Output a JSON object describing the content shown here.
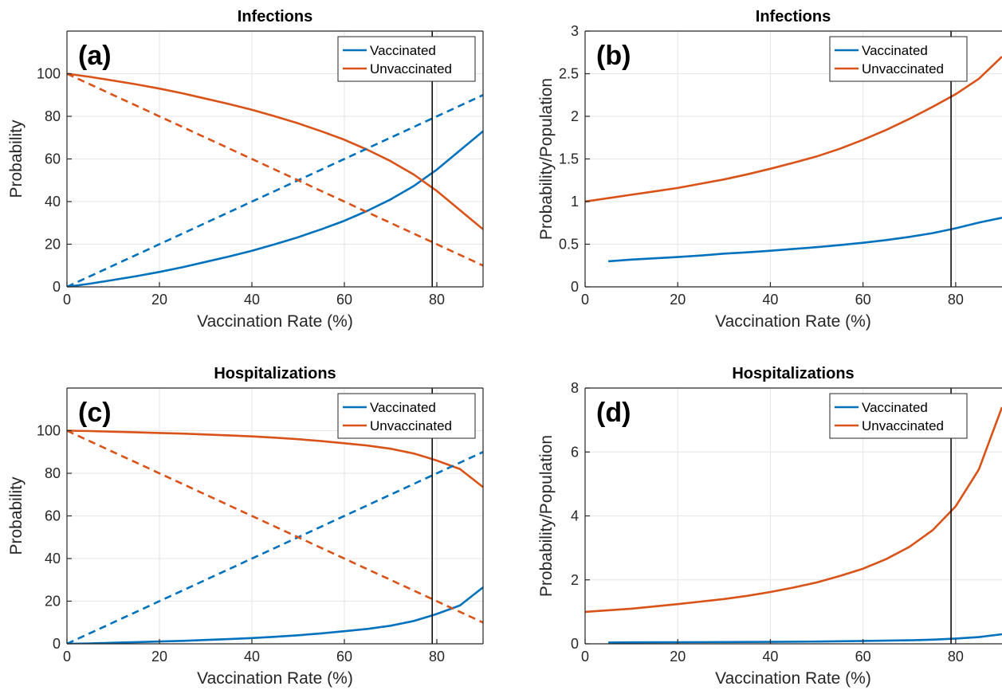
{
  "colors": {
    "vaccinated": "#0072BD",
    "unvaccinated": "#D95319",
    "marker_line": "#000000",
    "grid": "#e6e6e6",
    "axis": "#262626"
  },
  "chart_data": [
    {
      "type": "line",
      "title": "Infections",
      "panel_label": "(a)",
      "xlabel": "Vaccination Rate (%)",
      "ylabel": "Probability",
      "xlim": [
        0,
        90
      ],
      "ylim": [
        0,
        120
      ],
      "xticks": [
        0,
        20,
        40,
        60,
        80
      ],
      "yticks": [
        0,
        20,
        40,
        60,
        80,
        100
      ],
      "grid": true,
      "legend_position": "top-right",
      "vline_x": 79,
      "series": [
        {
          "name": "Vaccinated",
          "color_key": "vaccinated",
          "style": "solid",
          "in_legend": true,
          "x": [
            0,
            5,
            10,
            15,
            20,
            25,
            30,
            35,
            40,
            45,
            50,
            55,
            60,
            65,
            70,
            75,
            79,
            80,
            85,
            90
          ],
          "y": [
            0,
            1.5,
            3.2,
            5,
            7,
            9.2,
            11.7,
            14.2,
            16.9,
            20,
            23.3,
            27,
            31,
            35.7,
            41,
            47.3,
            53.5,
            55,
            64,
            73
          ]
        },
        {
          "name": "Unvaccinated",
          "color_key": "unvaccinated",
          "style": "solid",
          "in_legend": true,
          "x": [
            0,
            5,
            10,
            15,
            20,
            25,
            30,
            35,
            40,
            45,
            50,
            55,
            60,
            65,
            70,
            75,
            79,
            80,
            85,
            90
          ],
          "y": [
            100,
            98.5,
            96.8,
            95,
            93,
            90.8,
            88.3,
            85.8,
            83.1,
            80,
            76.7,
            73,
            69,
            64.3,
            59,
            52.7,
            46.5,
            45,
            36,
            27
          ]
        },
        {
          "name": "",
          "color_key": "vaccinated",
          "style": "dashed",
          "in_legend": false,
          "x": [
            0,
            90
          ],
          "y": [
            0,
            90
          ]
        },
        {
          "name": "",
          "color_key": "unvaccinated",
          "style": "dashed",
          "in_legend": false,
          "x": [
            0,
            90
          ],
          "y": [
            100,
            10
          ]
        }
      ]
    },
    {
      "type": "line",
      "title": "Infections",
      "panel_label": "(b)",
      "xlabel": "Vaccination Rate (%)",
      "ylabel": "Probability/Population",
      "xlim": [
        0,
        90
      ],
      "ylim": [
        0,
        3
      ],
      "xticks": [
        0,
        20,
        40,
        60,
        80
      ],
      "yticks": [
        0,
        0.5,
        1,
        1.5,
        2,
        2.5,
        3
      ],
      "grid": true,
      "legend_position": "top-right",
      "vline_x": 79,
      "series": [
        {
          "name": "Vaccinated",
          "color_key": "vaccinated",
          "style": "solid",
          "in_legend": true,
          "x": [
            5,
            10,
            15,
            20,
            25,
            30,
            35,
            40,
            45,
            50,
            55,
            60,
            65,
            70,
            75,
            80,
            85,
            90
          ],
          "y": [
            0.3,
            0.32,
            0.335,
            0.35,
            0.367,
            0.39,
            0.405,
            0.423,
            0.445,
            0.465,
            0.49,
            0.517,
            0.549,
            0.586,
            0.63,
            0.687,
            0.753,
            0.81
          ]
        },
        {
          "name": "Unvaccinated",
          "color_key": "unvaccinated",
          "style": "solid",
          "in_legend": true,
          "x": [
            0,
            5,
            10,
            15,
            20,
            25,
            30,
            35,
            40,
            45,
            50,
            55,
            60,
            65,
            70,
            75,
            80,
            85,
            90
          ],
          "y": [
            1,
            1.04,
            1.08,
            1.12,
            1.16,
            1.21,
            1.26,
            1.32,
            1.385,
            1.455,
            1.53,
            1.62,
            1.725,
            1.84,
            1.97,
            2.11,
            2.26,
            2.44,
            2.7
          ]
        }
      ]
    },
    {
      "type": "line",
      "title": "Hospitalizations",
      "panel_label": "(c)",
      "xlabel": "Vaccination Rate (%)",
      "ylabel": "Probability",
      "xlim": [
        0,
        90
      ],
      "ylim": [
        0,
        120
      ],
      "xticks": [
        0,
        20,
        40,
        60,
        80
      ],
      "yticks": [
        0,
        20,
        40,
        60,
        80,
        100
      ],
      "grid": true,
      "legend_position": "top-right",
      "vline_x": 79,
      "series": [
        {
          "name": "Vaccinated",
          "color_key": "vaccinated",
          "style": "solid",
          "in_legend": true,
          "x": [
            0,
            5,
            10,
            15,
            20,
            25,
            30,
            35,
            40,
            45,
            50,
            55,
            60,
            65,
            70,
            75,
            79,
            80,
            85,
            90
          ],
          "y": [
            0,
            0.2,
            0.5,
            0.8,
            1.1,
            1.4,
            1.8,
            2.2,
            2.7,
            3.3,
            4,
            4.9,
            5.9,
            7,
            8.5,
            10.7,
            13.3,
            14,
            18,
            26.5
          ]
        },
        {
          "name": "Unvaccinated",
          "color_key": "unvaccinated",
          "style": "solid",
          "in_legend": true,
          "x": [
            0,
            5,
            10,
            15,
            20,
            25,
            30,
            35,
            40,
            45,
            50,
            55,
            60,
            65,
            70,
            75,
            79,
            80,
            85,
            90
          ],
          "y": [
            100,
            99.8,
            99.5,
            99.2,
            98.9,
            98.6,
            98.2,
            97.8,
            97.3,
            96.7,
            96,
            95.1,
            94.1,
            93,
            91.5,
            89.3,
            86.7,
            86,
            82,
            73.5
          ]
        },
        {
          "name": "",
          "color_key": "vaccinated",
          "style": "dashed",
          "in_legend": false,
          "x": [
            0,
            90
          ],
          "y": [
            0,
            90
          ]
        },
        {
          "name": "",
          "color_key": "unvaccinated",
          "style": "dashed",
          "in_legend": false,
          "x": [
            0,
            90
          ],
          "y": [
            100,
            10
          ]
        }
      ]
    },
    {
      "type": "line",
      "title": "Hospitalizations",
      "panel_label": "(d)",
      "xlabel": "Vaccination Rate (%)",
      "ylabel": "Probability/Population",
      "xlim": [
        0,
        90
      ],
      "ylim": [
        0,
        8
      ],
      "xticks": [
        0,
        20,
        40,
        60,
        80
      ],
      "yticks": [
        0,
        2,
        4,
        6,
        8
      ],
      "grid": true,
      "legend_position": "top-right",
      "vline_x": 79,
      "series": [
        {
          "name": "Vaccinated",
          "color_key": "vaccinated",
          "style": "solid",
          "in_legend": true,
          "x": [
            5,
            10,
            20,
            30,
            40,
            50,
            60,
            70,
            75,
            80,
            85,
            90
          ],
          "y": [
            0.04,
            0.045,
            0.05,
            0.055,
            0.06,
            0.07,
            0.09,
            0.11,
            0.13,
            0.165,
            0.21,
            0.3
          ]
        },
        {
          "name": "Unvaccinated",
          "color_key": "unvaccinated",
          "style": "solid",
          "in_legend": true,
          "x": [
            0,
            5,
            10,
            15,
            20,
            25,
            30,
            35,
            40,
            45,
            50,
            55,
            60,
            65,
            70,
            75,
            80,
            85,
            90
          ],
          "y": [
            1,
            1.05,
            1.1,
            1.17,
            1.24,
            1.32,
            1.4,
            1.5,
            1.62,
            1.76,
            1.92,
            2.12,
            2.35,
            2.65,
            3.03,
            3.55,
            4.3,
            5.45,
            7.4
          ]
        }
      ]
    }
  ]
}
